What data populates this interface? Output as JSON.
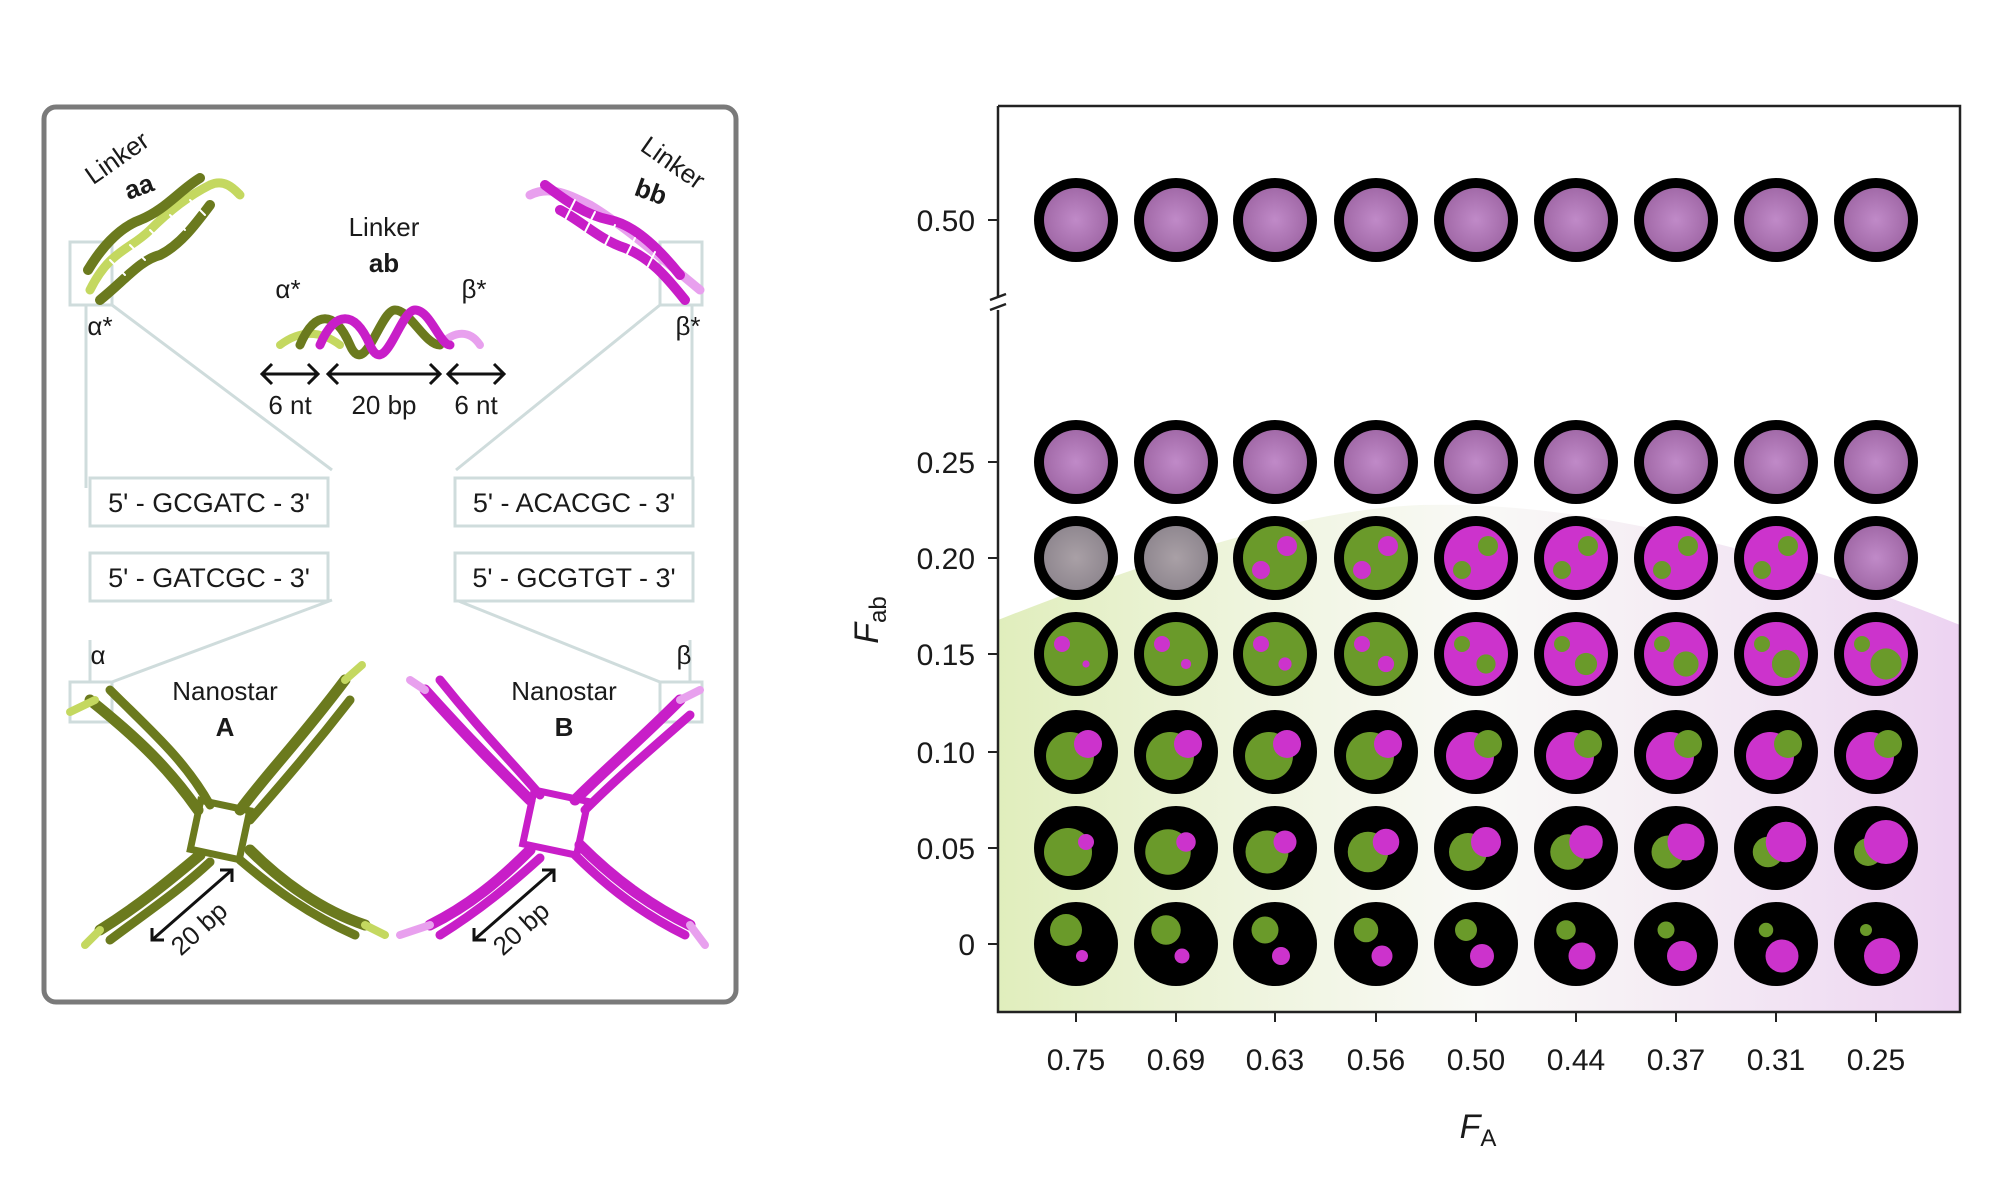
{
  "schematic": {
    "linker_aa": {
      "word": "Linker",
      "name": "aa"
    },
    "linker_bb": {
      "word": "Linker",
      "name": "bb"
    },
    "linker_ab": {
      "word": "Linker",
      "name": "ab"
    },
    "alpha_star": "α*",
    "beta_star": "β*",
    "alpha": "α",
    "beta": "β",
    "dim_6nt": "6 nt",
    "dim_20bp": "20 bp",
    "seq_aa": "5' - GCGATC - 3'",
    "seq_bb": "5' - ACACGC - 3'",
    "seq_a": "5' - GATCGC - 3'",
    "seq_b": "5' - GCGTGT - 3'",
    "nanostar_a": {
      "word": "Nanostar",
      "name": "A"
    },
    "nanostar_b": {
      "word": "Nanostar",
      "name": "B"
    },
    "arm_length": "20 bp"
  },
  "phase_map": {
    "x_axis_label": "F",
    "x_axis_sub": "A",
    "y_axis_label": "F",
    "y_axis_sub": "ab",
    "x_ticks": [
      "0.75",
      "0.69",
      "0.63",
      "0.56",
      "0.50",
      "0.44",
      "0.37",
      "0.31",
      "0.25"
    ],
    "y_ticks": [
      "0.50",
      "0.25",
      "0.20",
      "0.15",
      "0.10",
      "0.05",
      "0"
    ],
    "colors": {
      "green": "#6a9a2a",
      "magenta": "#cc33cc",
      "mixed": "#b07ab8",
      "background": "#000000"
    }
  }
}
